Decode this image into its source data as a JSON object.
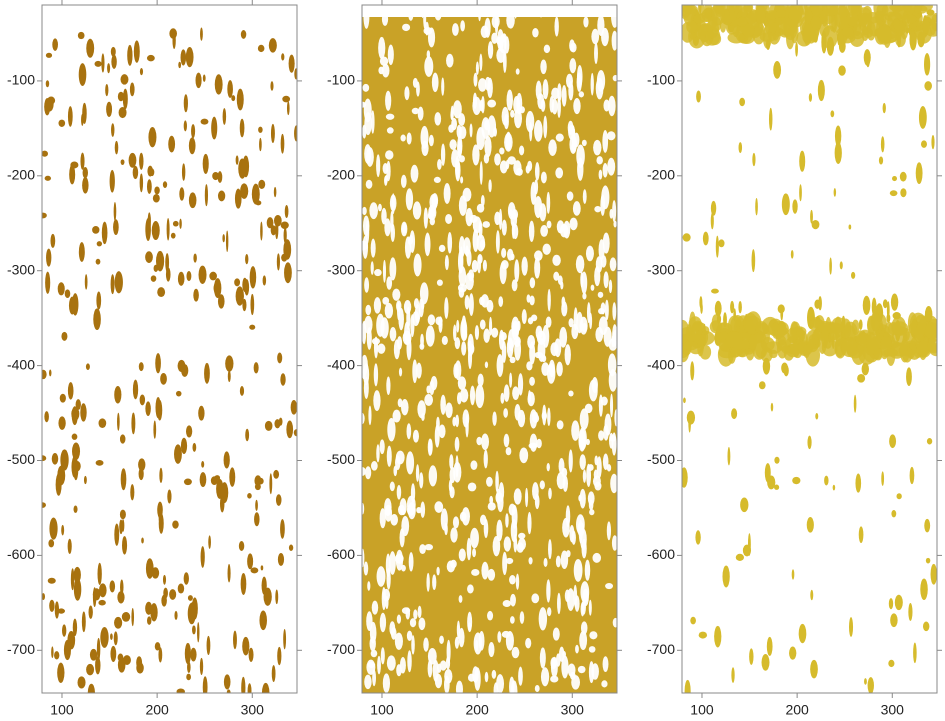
{
  "chart_data": [
    {
      "type": "density",
      "color": "#a8720f",
      "xlim": [
        79,
        347
      ],
      "ylim": [
        -745,
        -20
      ],
      "xticks": [
        100,
        200,
        300
      ],
      "yticks": [
        -100,
        -200,
        -300,
        -400,
        -500,
        -600,
        -700
      ]
    },
    {
      "type": "density",
      "color": "#c9a227",
      "xlim": [
        79,
        347
      ],
      "ylim": [
        -745,
        -20
      ],
      "xticks": [
        100,
        200,
        300
      ],
      "yticks": [
        -100,
        -200,
        -300,
        -400,
        -500,
        -600,
        -700
      ]
    },
    {
      "type": "density",
      "color": "#d6bb2c",
      "xlim": [
        79,
        347
      ],
      "ylim": [
        -745,
        -20
      ],
      "xticks": [
        100,
        200,
        300
      ],
      "yticks": [
        -100,
        -200,
        -300,
        -400,
        -500,
        -600,
        -700
      ]
    }
  ]
}
